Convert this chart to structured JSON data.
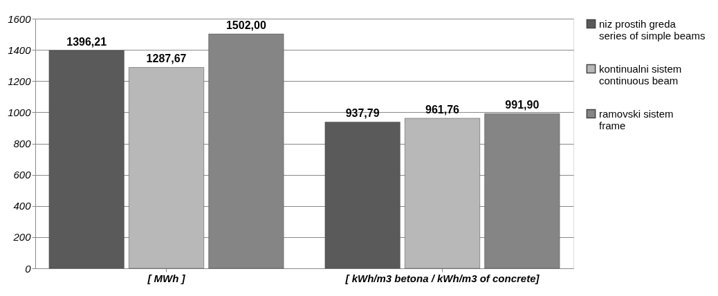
{
  "chart_data": {
    "type": "bar",
    "categories": [
      "[ MWh ]",
      "[ kWh/m3 betona / kWh/m3 of concrete]"
    ],
    "series": [
      {
        "name": "niz prostih greda\nseries of simple beams",
        "color": "#5a5a5a",
        "values": [
          1396.21,
          937.79
        ],
        "value_labels": [
          "1396,21",
          "937,79"
        ]
      },
      {
        "name": "kontinualni sistem\ncontinuous beam",
        "color": "#b8b8b8",
        "values": [
          1287.67,
          961.76
        ],
        "value_labels": [
          "1287,67",
          "961,76"
        ]
      },
      {
        "name": "ramovski sistem\nframe",
        "color": "#858585",
        "values": [
          1502.0,
          991.9
        ],
        "value_labels": [
          "1502,00",
          "991,90"
        ]
      }
    ],
    "ylim": [
      0,
      1600
    ],
    "yticks": [
      0,
      200,
      400,
      600,
      800,
      1000,
      1200,
      1400,
      1600
    ],
    "grid": "y",
    "legend": "right"
  }
}
